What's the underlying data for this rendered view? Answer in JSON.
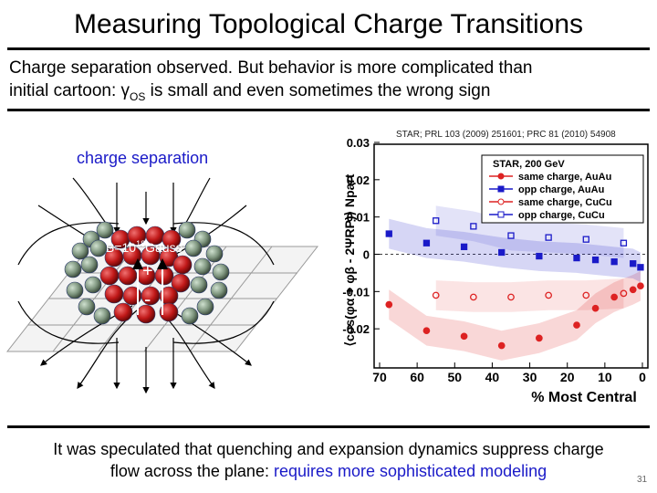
{
  "slide": {
    "title": "Measuring Topological Charge Transitions",
    "subtitle_line1": "Charge separation observed. But behavior is more complicated than",
    "subtitle_line2_pre": "initial cartoon: γ",
    "subtitle_line2_sub": "OS",
    "subtitle_line2_post": " is small and even sometimes the wrong sign",
    "reference": "STAR; PRL 103 (2009) 251601; PRC 81 (2010) 54908",
    "footer_line1": "It was speculated that quenching and expansion dynamics suppress charge",
    "footer_line2_black": "flow across the plane: ",
    "footer_line2_blue": "requires more sophisticated modeling",
    "page_number": "31",
    "accent_blue": "#1a1ac8"
  },
  "cartoon": {
    "label": "charge separation",
    "b_field_pre": "B=10",
    "b_field_exp": "18",
    "b_field_post": "Gauss",
    "plus": "+",
    "minus": "-"
  },
  "chart_data": {
    "type": "scatter",
    "ylabel": "⟨cos(φα + φβ - 2ΨRP)⟩ Npart",
    "xlabel": "% Most Central",
    "xlim": [
      70,
      0
    ],
    "ylim": [
      -0.03,
      0.03
    ],
    "xticks": [
      "70",
      "60",
      "50",
      "40",
      "30",
      "20",
      "10",
      "0"
    ],
    "yticks": [
      "0.03",
      "0.02",
      "0.01",
      "0",
      "-0.01",
      "-0.02"
    ],
    "legend_title": "STAR, 200 GeV",
    "legend_position": "top-right",
    "series": [
      {
        "name": "same charge, AuAu",
        "color": "#dd2222",
        "marker": "filled-circle",
        "x": [
          67.5,
          57.5,
          47.5,
          37.5,
          27.5,
          17.5,
          12.5,
          7.5,
          2.5,
          0.5
        ],
        "y": [
          -0.0135,
          -0.0205,
          -0.022,
          -0.0245,
          -0.0225,
          -0.019,
          -0.0145,
          -0.0115,
          -0.0095,
          -0.0085
        ]
      },
      {
        "name": "opp charge, AuAu",
        "color": "#1a1ac8",
        "marker": "filled-square",
        "x": [
          67.5,
          57.5,
          47.5,
          37.5,
          27.5,
          17.5,
          12.5,
          7.5,
          2.5,
          0.5
        ],
        "y": [
          0.0055,
          0.003,
          0.002,
          0.0005,
          -0.0005,
          -0.001,
          -0.0015,
          -0.002,
          -0.0025,
          -0.0035
        ]
      },
      {
        "name": "same charge, CuCu",
        "color": "#dd2222",
        "marker": "open-circle",
        "x": [
          55,
          45,
          35,
          25,
          15,
          5
        ],
        "y": [
          -0.011,
          -0.0115,
          -0.0115,
          -0.011,
          -0.011,
          -0.0105
        ]
      },
      {
        "name": "opp charge, CuCu",
        "color": "#1a1ac8",
        "marker": "open-square",
        "x": [
          55,
          45,
          35,
          25,
          15,
          5
        ],
        "y": [
          0.009,
          0.0075,
          0.005,
          0.0045,
          0.004,
          0.003
        ]
      }
    ],
    "grid": false
  }
}
